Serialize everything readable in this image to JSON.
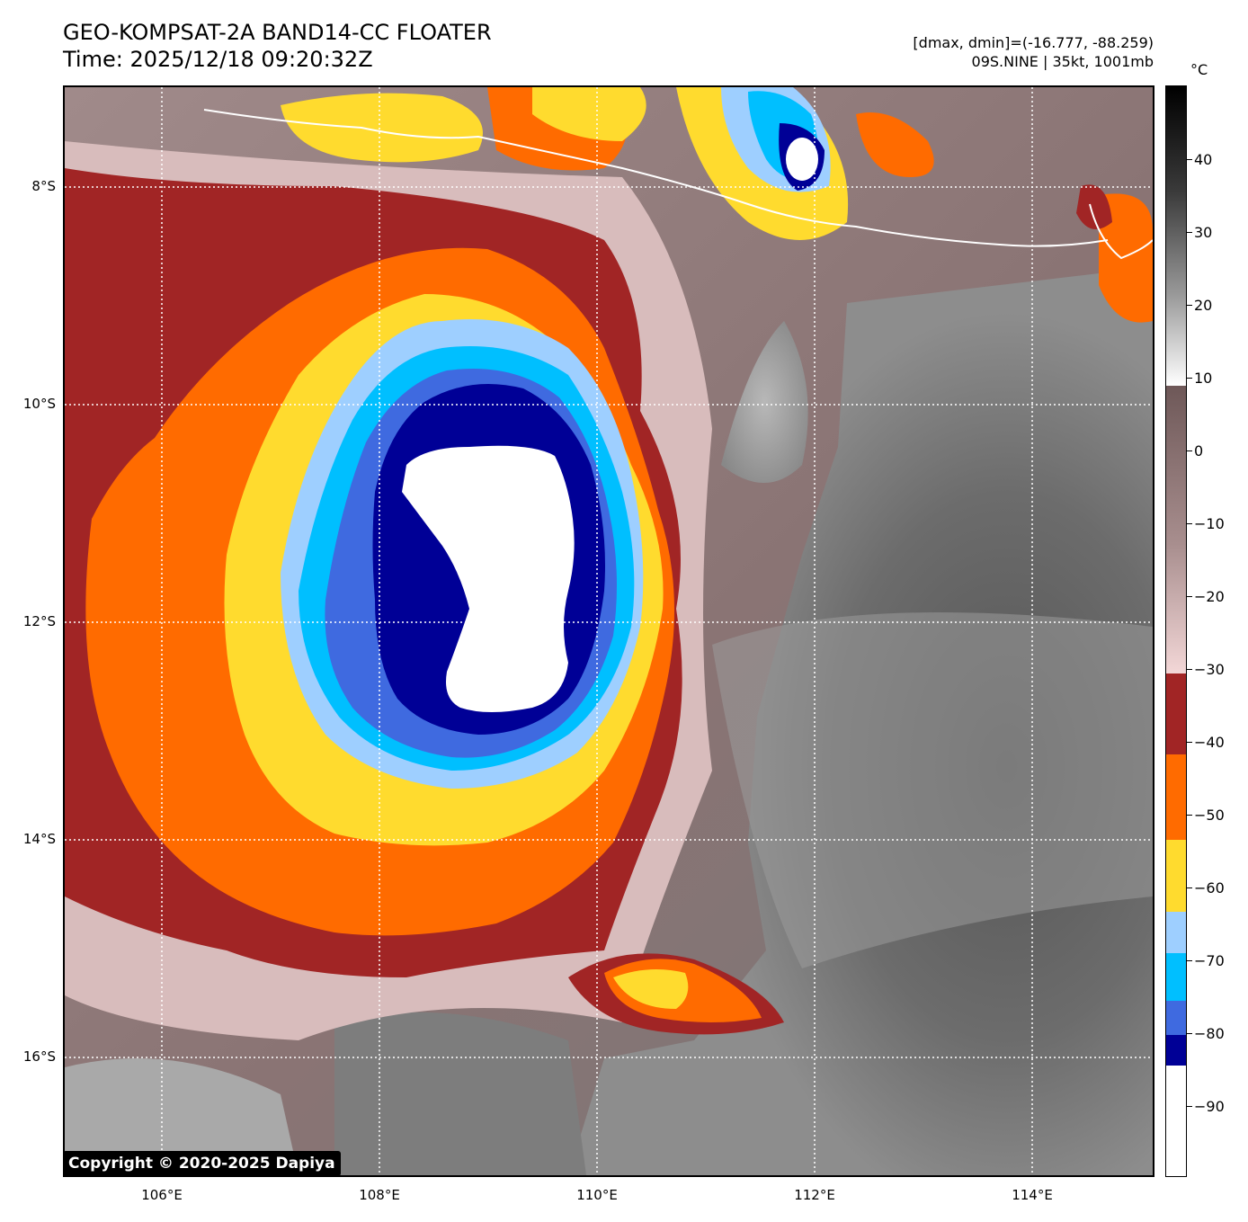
{
  "header": {
    "title_line1": "GEO-KOMPSAT-2A BAND14-CC FLOATER",
    "title_line2": "Time: 2025/12/18 09:20:32Z",
    "info_line1": "[dmax, dmin]=(-16.777, -88.259)",
    "info_line2": "09S.NINE | 35kt, 1001mb"
  },
  "map": {
    "lat_labels": [
      "8°S",
      "10°S",
      "12°S",
      "14°S",
      "16°S"
    ],
    "lon_labels": [
      "106°E",
      "108°E",
      "110°E",
      "112°E",
      "114°E"
    ],
    "copyright": "Copyright © 2020-2025 Dapiya"
  },
  "colorbar": {
    "unit": "°C",
    "labels": [
      "40",
      "30",
      "20",
      "10",
      "0",
      "−10",
      "−20",
      "−30",
      "−40",
      "−50",
      "−60",
      "−70",
      "−80",
      "−90"
    ],
    "colors": {
      "black": "#000000",
      "gray_warm": "#6e5858",
      "pink": "#f3d7d7",
      "dark_red": "#a12525",
      "orange": "#ff6b00",
      "yellow": "#ffdb2e",
      "light_blue": "#9ecfff",
      "cyan": "#00bfff",
      "royal_blue": "#3f6ae0",
      "navy": "#000096",
      "white": "#ffffff"
    }
  }
}
